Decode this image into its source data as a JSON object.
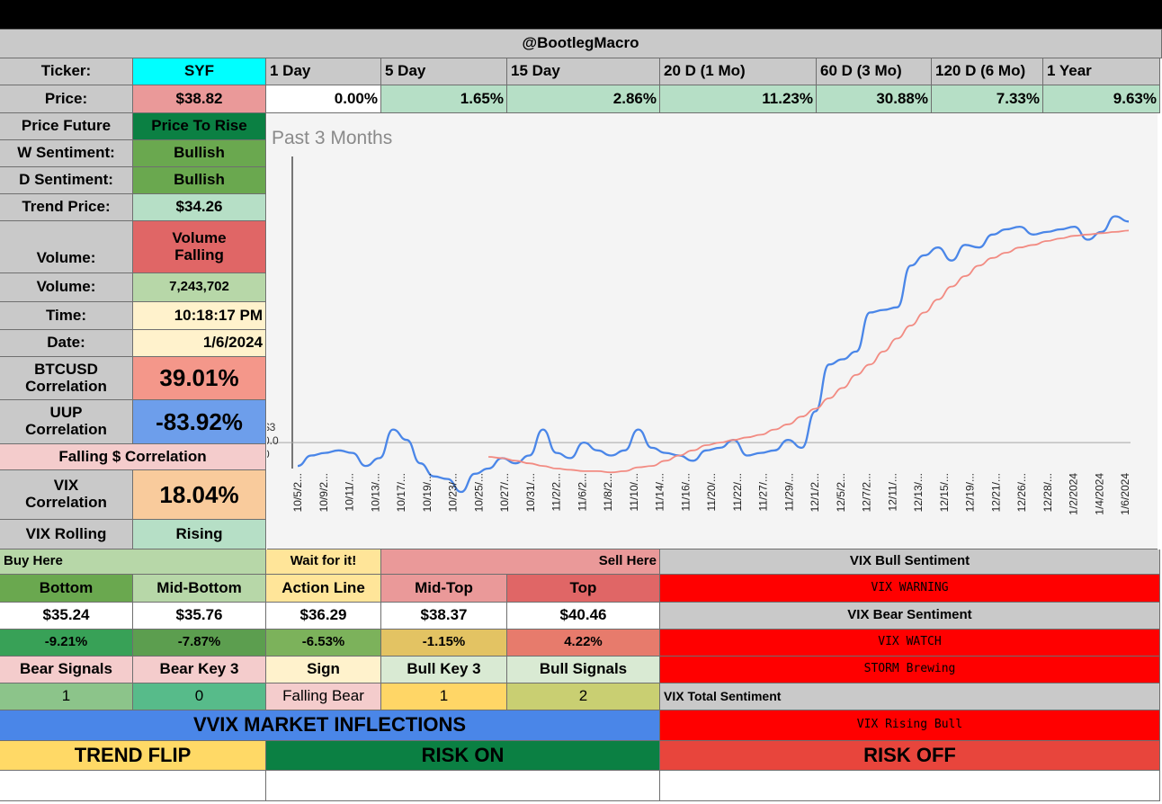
{
  "header": {
    "title": "@BootlegMacro"
  },
  "ticker": {
    "label": "Ticker:",
    "value": "SYF"
  },
  "periods": {
    "labels": [
      "1 Day",
      "5 Day",
      "15 Day",
      "20 D (1 Mo)",
      "60 D (3 Mo)",
      "120 D (6 Mo)",
      "1 Year"
    ],
    "values": [
      "0.00%",
      "1.65%",
      "2.86%",
      "11.23%",
      "30.88%",
      "7.33%",
      "9.63%"
    ]
  },
  "price": {
    "label": "Price:",
    "value": "$38.82"
  },
  "left_panel": {
    "price_future": {
      "label": "Price Future",
      "value": "Price To Rise"
    },
    "w_sentiment": {
      "label": "W Sentiment:",
      "value": "Bullish"
    },
    "d_sentiment": {
      "label": "D Sentiment:",
      "value": "Bullish"
    },
    "trend_price": {
      "label": "Trend Price:",
      "value": "$34.26"
    },
    "volume_trend": {
      "label": "Volume:",
      "value": "Volume Falling"
    },
    "volume": {
      "label": "Volume:",
      "value": "7,243,702"
    },
    "time": {
      "label": "Time:",
      "value": "10:18:17 PM"
    },
    "date": {
      "label": "Date:",
      "value": "1/6/2024"
    },
    "btc_corr": {
      "label": "BTCUSD Correlation",
      "value": "39.01%"
    },
    "uup_corr": {
      "label": "UUP Correlation",
      "value": "-83.92%"
    },
    "falling_corr": {
      "label": "Falling $ Correlation"
    },
    "vix_corr": {
      "label": "VIX Correlation",
      "value": "18.04%"
    },
    "vix_rolling": {
      "label": "VIX Rolling",
      "value": "Rising"
    }
  },
  "levels": {
    "buy_here": "Buy Here",
    "wait": "Wait for it!",
    "sell_here": "Sell Here",
    "headers": [
      "Bottom",
      "Mid-Bottom",
      "Action Line",
      "Mid-Top",
      "Top"
    ],
    "prices": [
      "$35.24",
      "$35.76",
      "$36.29",
      "$38.37",
      "$40.46"
    ],
    "pcts": [
      "-9.21%",
      "-7.87%",
      "-6.53%",
      "-1.15%",
      "4.22%"
    ],
    "signal_headers": [
      "Bear Signals",
      "Bear Key 3",
      "Sign",
      "Bull Key 3",
      "Bull Signals"
    ],
    "signal_values": [
      "1",
      "0",
      "Falling Bear",
      "1",
      "2"
    ]
  },
  "vix": {
    "bull_title": "VIX Bull Sentiment",
    "bull_value": "VIX WARNING",
    "bear_title": "VIX Bear Sentiment",
    "bear_value": "VIX WATCH",
    "storm": "STORM Brewing",
    "total_title": "VIX Total Sentiment",
    "total_value": "VIX Rising Bull"
  },
  "inflections": {
    "title": "VVIX MARKET INFLECTIONS",
    "trend_flip": "TREND FLIP",
    "risk_on": "RISK ON",
    "risk_off": "RISK OFF"
  },
  "colors": {
    "grey": "#c9c9c9",
    "cyan": "#00ffff",
    "pink": "#ea9999",
    "green_dark": "#6aa84f",
    "mint": "#b6dfc6",
    "red_soft": "#e06666",
    "sage": "#b7d7a8",
    "cream": "#fff2cc",
    "salmon": "#f4978a",
    "blue": "#6d9eeb",
    "light_pink": "#f4cccc",
    "peach": "#f9cb9c",
    "red": "#ff0000",
    "vvix_blue": "#4a86e8",
    "yellow": "#ffd966",
    "dark_green": "#0b8043",
    "risk_red": "#e8453c",
    "line_blue": "#4a86e8",
    "line_red": "#f28b82"
  },
  "chart_data": {
    "type": "line",
    "title": "Past 3 Months",
    "x_labels": [
      "10/5/2...",
      "10/9/2...",
      "10/11/...",
      "10/13/...",
      "10/17/...",
      "10/19/...",
      "10/23/...",
      "10/25/...",
      "10/27/...",
      "10/31/...",
      "11/2/2...",
      "11/6/2...",
      "11/8/2...",
      "11/10/...",
      "11/14/...",
      "11/16/...",
      "11/20/...",
      "11/22/...",
      "11/27/...",
      "11/29/...",
      "12/1/2...",
      "12/5/2...",
      "12/7/2...",
      "12/11/...",
      "12/13/...",
      "12/15/...",
      "12/19/...",
      "12/21/...",
      "12/26/...",
      "12/28/...",
      "1/2/2024",
      "1/4/2024",
      "1/6/2024"
    ],
    "y_tick_labels": [
      "$3",
      "0.0",
      "0"
    ],
    "ylim": [
      -1,
      11
    ],
    "series": [
      {
        "name": "Price",
        "values": [
          -0.9,
          -0.5,
          -0.4,
          -0.3,
          -0.4,
          -0.9,
          -0.6,
          0.5,
          0.1,
          -0.8,
          -1.3,
          -1.4,
          -1.9,
          -1.2,
          -1.0,
          -0.6,
          -0.8,
          -0.5,
          0.5,
          -0.4,
          -0.6,
          0.0,
          -0.3,
          -0.5,
          -0.3,
          0.5,
          -0.2,
          -0.4,
          -0.5,
          -0.7,
          -0.3,
          -0.2,
          0.1,
          -0.5,
          -0.4,
          -0.3,
          0.1,
          -0.2,
          1.2,
          3.0,
          3.2,
          3.5,
          5.0,
          5.1,
          5.2,
          6.8,
          7.2,
          7.5,
          7.0,
          7.6,
          7.5,
          8.0,
          8.2,
          8.3,
          8.0,
          8.1,
          8.2,
          8.3,
          7.8,
          8.1,
          8.7,
          8.5
        ]
      },
      {
        "name": "Trend",
        "values": [
          null,
          null,
          null,
          null,
          null,
          null,
          null,
          null,
          null,
          null,
          null,
          null,
          null,
          null,
          -0.55,
          -0.6,
          -0.7,
          -0.8,
          -0.9,
          -1.0,
          -1.05,
          -1.1,
          -1.1,
          -1.15,
          -1.1,
          -0.95,
          -0.9,
          -0.7,
          -0.5,
          -0.3,
          -0.1,
          0.0,
          0.1,
          0.2,
          0.3,
          0.5,
          0.7,
          1.0,
          1.3,
          1.7,
          2.1,
          2.6,
          3.0,
          3.5,
          4.0,
          4.5,
          5.0,
          5.5,
          6.0,
          6.4,
          6.8,
          7.1,
          7.3,
          7.5,
          7.6,
          7.75,
          7.85,
          7.95,
          8.0,
          8.05,
          8.1,
          8.15
        ]
      }
    ]
  }
}
